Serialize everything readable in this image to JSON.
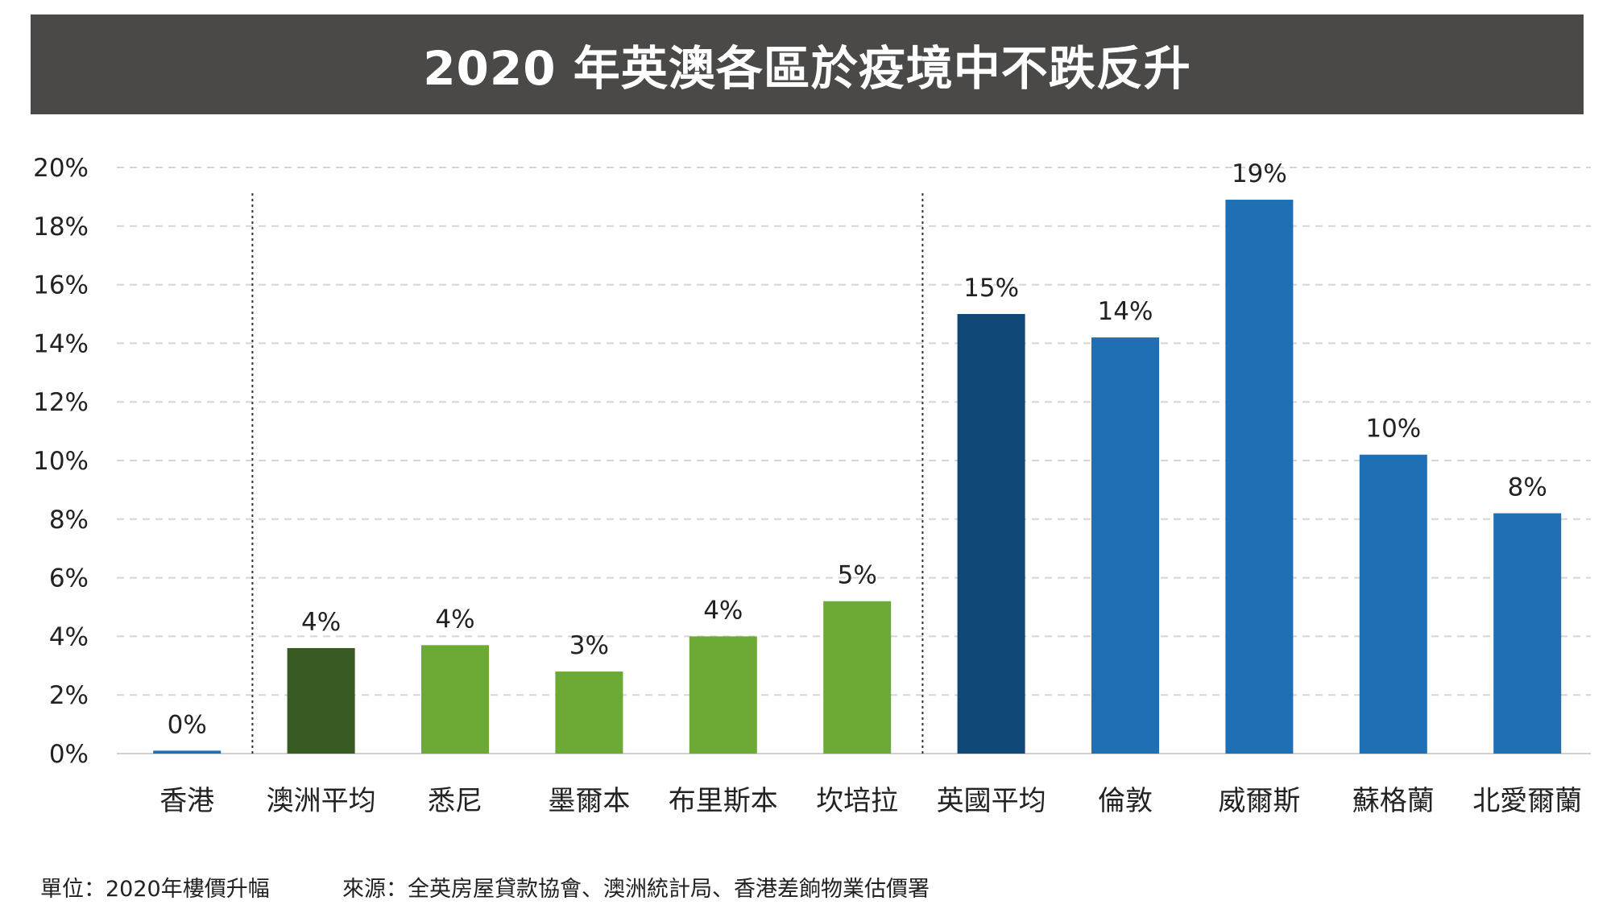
{
  "chart_data": {
    "type": "bar",
    "title": "2020 年英澳各區於疫境中不跌反升",
    "categories": [
      "香港",
      "澳洲平均",
      "悉尼",
      "墨爾本",
      "布里斯本",
      "坎培拉",
      "英國平均",
      "倫敦",
      "威爾斯",
      "蘇格蘭",
      "北愛爾蘭"
    ],
    "values": [
      0.1,
      3.6,
      3.7,
      2.8,
      4.0,
      5.2,
      15.0,
      14.2,
      18.9,
      10.2,
      8.2
    ],
    "value_labels": [
      "0%",
      "4%",
      "4%",
      "3%",
      "4%",
      "5%",
      "15%",
      "14%",
      "19%",
      "10%",
      "8%"
    ],
    "bar_colors": [
      "#1f6fb5",
      "#385b24",
      "#6daa35",
      "#6daa35",
      "#6daa35",
      "#6daa35",
      "#0f4777",
      "#1f6fb5",
      "#1f6fb5",
      "#1f6fb5",
      "#1f6fb5"
    ],
    "ylim": [
      0,
      20
    ],
    "yticks": [
      "0%",
      "2%",
      "4%",
      "6%",
      "8%",
      "10%",
      "12%",
      "14%",
      "16%",
      "18%",
      "20%"
    ],
    "grid": true,
    "group_separators_after": [
      0,
      5
    ],
    "xlabel": "",
    "ylabel": ""
  },
  "footer": {
    "unit": "單位：2020年樓價升幅",
    "source": "來源：全英房屋貸款協會、澳洲統計局、香港差餉物業估價署"
  }
}
